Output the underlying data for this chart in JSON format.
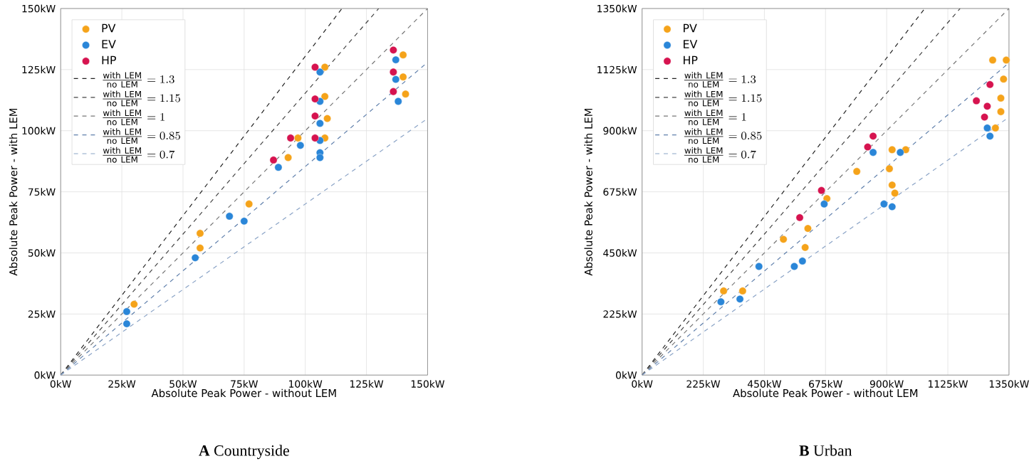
{
  "chart_data": [
    {
      "type": "scatter",
      "title": "**A** Countryside",
      "xlabel": "Absolute Peak Power - without LEM",
      "ylabel": "Absolute Peak Power - with LEM",
      "xlim": [
        0,
        150
      ],
      "ylim": [
        0,
        150
      ],
      "xticks": [
        {
          "value": 0,
          "label": "0kW"
        },
        {
          "value": 25,
          "label": "25kW"
        },
        {
          "value": 50,
          "label": "50kW"
        },
        {
          "value": 75,
          "label": "75kW"
        },
        {
          "value": 100,
          "label": "100kW"
        },
        {
          "value": 125,
          "label": "125kW"
        },
        {
          "value": 150,
          "label": "150kW"
        }
      ],
      "yticks": [
        {
          "value": 0,
          "label": "0kW"
        },
        {
          "value": 25,
          "label": "25kW"
        },
        {
          "value": 50,
          "label": "50kW"
        },
        {
          "value": 75,
          "label": "75kW"
        },
        {
          "value": 100,
          "label": "100kW"
        },
        {
          "value": 125,
          "label": "125kW"
        },
        {
          "value": 150,
          "label": "150kW"
        }
      ],
      "grid": true,
      "legend": "top left",
      "series": [
        {
          "name": "PV",
          "color": "#f5a31a",
          "x": [
            30,
            57,
            57,
            77,
            108,
            108,
            109,
            108,
            140,
            140,
            141,
            93,
            97
          ],
          "values": [
            29,
            58,
            52,
            70,
            126,
            114,
            105,
            97,
            131,
            122,
            115,
            89,
            97
          ]
        },
        {
          "name": "EV",
          "color": "#2a86d8",
          "x": [
            27,
            27,
            55,
            75,
            69,
            106,
            106,
            106,
            106,
            106,
            106,
            89,
            98,
            137,
            137,
            138
          ],
          "values": [
            26,
            21,
            48,
            63,
            65,
            124,
            112,
            103,
            96,
            91,
            89,
            85,
            94,
            129,
            121,
            112
          ]
        },
        {
          "name": "HP",
          "color": "#d6134f",
          "x": [
            87,
            94,
            104,
            104,
            104,
            104,
            136,
            136,
            136
          ],
          "values": [
            88,
            97,
            126,
            113,
            106,
            97,
            133,
            124,
            116
          ]
        },
        {
          "name": "\\frac{\\mathrm{with\\ LEM}}{\\mathrm{no\\ LEM}}=1.3",
          "type": "line",
          "marker": "none",
          "line_style": "dashed",
          "color": "#222222",
          "x": [
            0,
            115
          ],
          "values": [
            0,
            150
          ]
        },
        {
          "name": "\\frac{\\mathrm{with\\ LEM}}{\\mathrm{no\\ LEM}}=1.15",
          "type": "line",
          "marker": "none",
          "line_style": "dashed",
          "color": "#444444",
          "x": [
            0,
            130
          ],
          "values": [
            0,
            150
          ]
        },
        {
          "name": "\\frac{\\mathrm{with\\ LEM}}{\\mathrm{no\\ LEM}}=1",
          "type": "line",
          "marker": "none",
          "line_style": "dashed",
          "color": "#777777",
          "x": [
            0,
            150
          ],
          "values": [
            0,
            150
          ]
        },
        {
          "name": "\\frac{\\mathrm{with\\ LEM}}{\\mathrm{no\\ LEM}}=0.85",
          "type": "line",
          "marker": "none",
          "line_style": "dashed",
          "color": "#5f7fab",
          "x": [
            0,
            150
          ],
          "values": [
            0,
            128
          ]
        },
        {
          "name": "\\frac{\\mathrm{with\\ LEM}}{\\mathrm{no\\ LEM}}=0.7",
          "type": "line",
          "marker": "none",
          "line_style": "dashed",
          "color": "#8aa3c6",
          "x": [
            0,
            150
          ],
          "values": [
            0,
            105
          ]
        }
      ]
    },
    {
      "type": "scatter",
      "title": "**B** Urban",
      "xlabel": "Absolute Peak Power - without LEM",
      "ylabel": "Absolute Peak Power - with LEM",
      "xlim": [
        0,
        1350
      ],
      "ylim": [
        0,
        1350
      ],
      "xticks": [
        {
          "value": 0,
          "label": "0kW"
        },
        {
          "value": 225,
          "label": "225kW"
        },
        {
          "value": 450,
          "label": "450kW"
        },
        {
          "value": 675,
          "label": "675kW"
        },
        {
          "value": 900,
          "label": "900kW"
        },
        {
          "value": 1125,
          "label": "1125kW"
        },
        {
          "value": 1350,
          "label": "1350kW"
        }
      ],
      "yticks": [
        {
          "value": 0,
          "label": "0kW"
        },
        {
          "value": 225,
          "label": "225kW"
        },
        {
          "value": 450,
          "label": "450kW"
        },
        {
          "value": 675,
          "label": "675kW"
        },
        {
          "value": 900,
          "label": "900kW"
        },
        {
          "value": 1125,
          "label": "1125kW"
        },
        {
          "value": 1350,
          "label": "1350kW"
        }
      ],
      "grid": true,
      "legend": "top left",
      "series": [
        {
          "name": "PV",
          "color": "#f5a31a",
          "x": [
            300,
            370,
            520,
            600,
            610,
            680,
            790,
            920,
            970,
            910,
            920,
            930,
            1290,
            1340,
            1330,
            1320,
            1320,
            1300
          ],
          "values": [
            310,
            310,
            500,
            470,
            540,
            650,
            750,
            830,
            830,
            760,
            700,
            670,
            1160,
            1160,
            1090,
            1020,
            970,
            910
          ]
        },
        {
          "name": "EV",
          "color": "#2a86d8",
          "x": [
            290,
            360,
            430,
            560,
            590,
            670,
            850,
            950,
            890,
            920,
            1270,
            1280
          ],
          "values": [
            270,
            280,
            400,
            400,
            420,
            630,
            820,
            820,
            630,
            620,
            910,
            880
          ]
        },
        {
          "name": "HP",
          "color": "#d6134f",
          "x": [
            580,
            660,
            830,
            850,
            1230,
            1270,
            1280,
            1260
          ],
          "values": [
            580,
            680,
            840,
            880,
            1010,
            990,
            1070,
            950
          ]
        },
        {
          "name": "\\frac{\\mathrm{with\\ LEM}}{\\mathrm{no\\ LEM}}=1.3",
          "type": "line",
          "marker": "none",
          "line_style": "dashed",
          "color": "#222222",
          "x": [
            0,
            1040
          ],
          "values": [
            0,
            1350
          ]
        },
        {
          "name": "\\frac{\\mathrm{with\\ LEM}}{\\mathrm{no\\ LEM}}=1.15",
          "type": "line",
          "marker": "none",
          "line_style": "dashed",
          "color": "#444444",
          "x": [
            0,
            1170
          ],
          "values": [
            0,
            1350
          ]
        },
        {
          "name": "\\frac{\\mathrm{with\\ LEM}}{\\mathrm{no\\ LEM}}=1",
          "type": "line",
          "marker": "none",
          "line_style": "dashed",
          "color": "#777777",
          "x": [
            0,
            1350
          ],
          "values": [
            0,
            1350
          ]
        },
        {
          "name": "\\frac{\\mathrm{with\\ LEM}}{\\mathrm{no\\ LEM}}=0.85",
          "type": "line",
          "marker": "none",
          "line_style": "dashed",
          "color": "#5f7fab",
          "x": [
            0,
            1350
          ],
          "values": [
            0,
            1150
          ]
        },
        {
          "name": "\\frac{\\mathrm{with\\ LEM}}{\\mathrm{no\\ LEM}}=0.7",
          "type": "line",
          "marker": "none",
          "line_style": "dashed",
          "color": "#8aa3c6",
          "x": [
            0,
            1350
          ],
          "values": [
            0,
            950
          ]
        }
      ]
    }
  ]
}
